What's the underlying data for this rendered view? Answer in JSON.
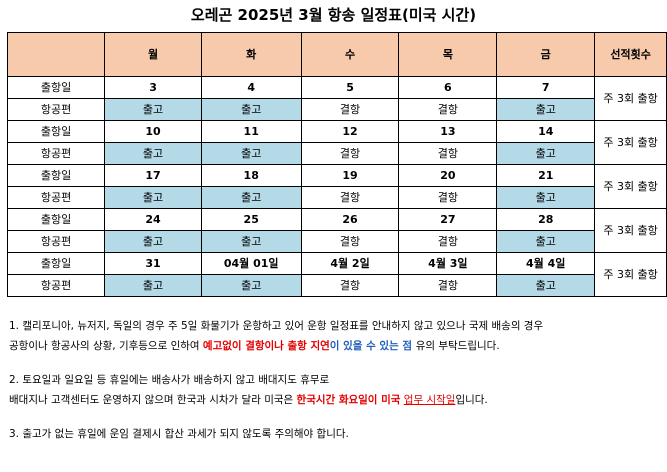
{
  "title": "오레곤 2025년 3월 항송 일정표(미국 시간)",
  "header": [
    "",
    "월",
    "화",
    "수",
    "목",
    "금",
    "선적횟수"
  ],
  "row_labels": {
    "date": "출항일",
    "flight": "항공편"
  },
  "weeks": [
    {
      "dates": [
        "3",
        "4",
        "5",
        "6",
        "7"
      ],
      "flights": [
        "출고",
        "출고",
        "결항",
        "결항",
        "출고"
      ],
      "count": "주 3회 출항"
    },
    {
      "dates": [
        "10",
        "11",
        "12",
        "13",
        "14"
      ],
      "flights": [
        "출고",
        "출고",
        "결항",
        "결항",
        "출고"
      ],
      "count": "주 3회 출항"
    },
    {
      "dates": [
        "17",
        "18",
        "19",
        "20",
        "21"
      ],
      "flights": [
        "출고",
        "출고",
        "결항",
        "결항",
        "출고"
      ],
      "count": "주 3회 출항"
    },
    {
      "dates": [
        "24",
        "25",
        "26",
        "27",
        "28"
      ],
      "flights": [
        "출고",
        "출고",
        "결항",
        "결항",
        "출고"
      ],
      "count": "주 3회 출항"
    },
    {
      "dates": [
        "31",
        "04월 01일",
        "4월 2일",
        "4월 3일",
        "4월 4일"
      ],
      "flights": [
        "출고",
        "출고",
        "결항",
        "결항",
        "출고"
      ],
      "count": "주 3회 출항"
    }
  ],
  "notes": {
    "n1_line1": "1. 캘리포니아, 뉴저지, 독일의 경우 주 5일 화물기가 운항하고 있어 운항 일정표를 안내하지 않고 있으나 국제 배송의 경우",
    "n1_line2_a": "공항이나 항공사의 상황, 기후등으로 인하여 ",
    "n1_line2_red": "예고없이 결항이나 출항 지연",
    "n1_line2_blue": "이 있을 수 있는 점 ",
    "n1_line2_b": "유의 부탁드립니다.",
    "n2_line1": "2. 토요일과 일요일 등 휴일에는 배송사가 배송하지 않고 배대지도 휴무로",
    "n2_line2_a": "배대지나 고객센터도 운영하지 않으며 한국과 시차가 달라 미국은 ",
    "n2_line2_red": "한국시간 화요일이 미국",
    "n2_line2_u": "업무 시작일",
    "n2_line2_b": "입니다.",
    "n3_line1": "3. 출고가 없는 휴일에 운임 결제시 합산 과세가 되지 않도록 주의해야 합니다."
  },
  "colors": {
    "header_bg": "#f7caac",
    "ship_bg": "#b4dae8",
    "red_text": "#e60000",
    "blue_text": "#1f5fbf"
  }
}
